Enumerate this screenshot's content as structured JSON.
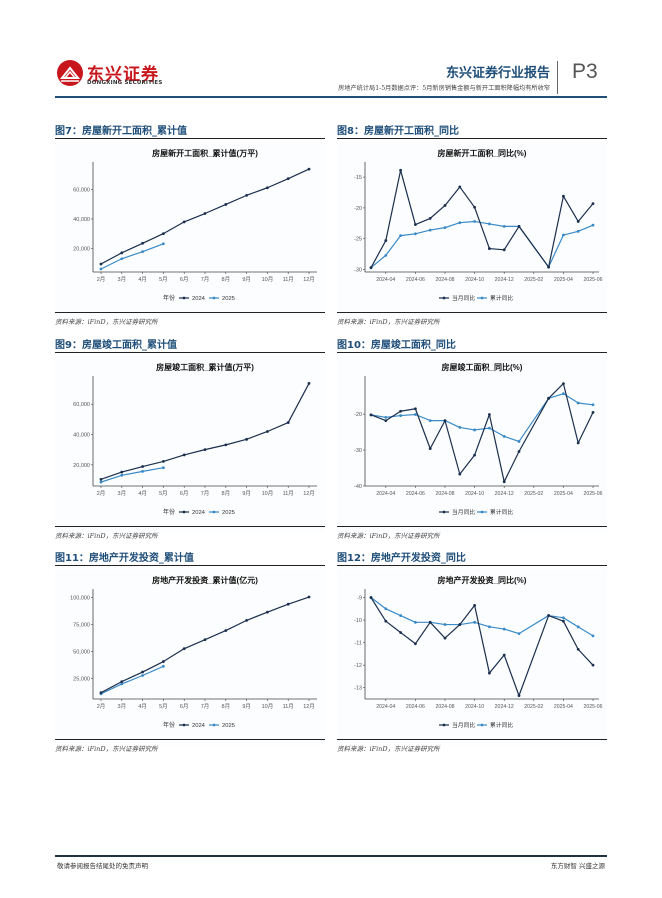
{
  "header": {
    "logo_cn": "东兴证券",
    "logo_en": "DONGXING SECURITIES",
    "report_title": "东兴证券行业报告",
    "subtitle": "房地产统计局1-5月数据点评：5月新房销售金额与新开工面积降幅均有所收窄",
    "page": "P3"
  },
  "colors": {
    "dark_series": "#1b2f4e",
    "light_series": "#3a8ac7",
    "title_blue": "#1f4e79"
  },
  "figures": [
    {
      "label": "图7：房屋新开工面积_累计值",
      "source": "资料来源：iFinD，东兴证券研究所"
    },
    {
      "label": "图8：房屋新开工面积_同比",
      "source": "资料来源：iFinD，东兴证券研究所"
    },
    {
      "label": "图9：房屋竣工面积_累计值",
      "source": "资料来源：iFinD，东兴证券研究所"
    },
    {
      "label": "图10：房屋竣工面积_同比",
      "source": "资料来源：iFinD，东兴证券研究所"
    },
    {
      "label": "图11：房地产开发投资_累计值",
      "source": "资料来源：iFinD，东兴证券研究所"
    },
    {
      "label": "图12：房地产开发投资_同比",
      "source": "资料来源：iFinD，东兴证券研究所"
    }
  ],
  "chart_data": [
    {
      "type": "line",
      "title": "房屋新开工面积_累计值(万平)",
      "categories": [
        "2月",
        "3月",
        "4月",
        "5月",
        "6月",
        "7月",
        "8月",
        "9月",
        "10月",
        "11月",
        "12月"
      ],
      "legend_title": "年份",
      "legend_position": "bottom",
      "ylim": [
        4000,
        76000
      ],
      "yticks": [
        20000,
        40000,
        60000
      ],
      "ytick_labels": [
        "20,000",
        "40,000",
        "60,000"
      ],
      "series": [
        {
          "name": "2024",
          "values": [
            9429,
            17026,
            23510,
            30090,
            38023,
            43731,
            49876,
            56051,
            61227,
            67407,
            73893
          ]
        },
        {
          "name": "2025",
          "values": [
            6035,
            12996,
            17836,
            23184
          ]
        }
      ]
    },
    {
      "type": "line",
      "title": "房屋新开工面积_同比(%)",
      "x": [
        "2024-03",
        "2024-04",
        "2024-05",
        "2024-06",
        "2024-07",
        "2024-08",
        "2024-09",
        "2024-10",
        "2024-11",
        "2024-12",
        "2025-01",
        "2025-03",
        "2025-04",
        "2025-05",
        "2025-06"
      ],
      "xticks": [
        "2024-04",
        "2024-06",
        "2024-08",
        "2024-10",
        "2024-12",
        "2025-02",
        "2025-04",
        "2025-06"
      ],
      "legend_position": "bottom",
      "ylim": [
        -30.4,
        -13.2
      ],
      "yticks": [
        -30,
        -25,
        -20,
        -15
      ],
      "series": [
        {
          "name": "当月同比",
          "values": [
            -29.7,
            -25.3,
            -13.9,
            -22.7,
            -21.7,
            -19.6,
            -16.6,
            -19.9,
            -26.6,
            -26.8,
            -23.0,
            -29.6,
            -18.1,
            -22.2,
            -19.3
          ]
        },
        {
          "name": "累计同比",
          "values": [
            -29.7,
            -27.7,
            -24.5,
            -24.2,
            -23.6,
            -23.2,
            -22.4,
            -22.2,
            -22.6,
            -23.0,
            -23.0,
            -29.6,
            -24.4,
            -23.8,
            -22.8
          ]
        }
      ]
    },
    {
      "type": "line",
      "title": "房屋竣工面积_累计值(万平)",
      "categories": [
        "2月",
        "3月",
        "4月",
        "5月",
        "6月",
        "7月",
        "8月",
        "9月",
        "10月",
        "11月",
        "12月"
      ],
      "legend_title": "年份",
      "legend_position": "bottom",
      "ylim": [
        6000,
        76000
      ],
      "yticks": [
        20000,
        40000,
        60000
      ],
      "ytick_labels": [
        "20,000",
        "40,000",
        "60,000"
      ],
      "series": [
        {
          "name": "2024",
          "values": [
            10395,
            15196,
            18840,
            22245,
            26519,
            30017,
            33163,
            36816,
            41995,
            47890,
            73743
          ]
        },
        {
          "name": "2025",
          "values": [
            8557,
            13060,
            15648,
            18086
          ]
        }
      ]
    },
    {
      "type": "line",
      "title": "房屋竣工面积_同比(%)",
      "x": [
        "2024-03",
        "2024-04",
        "2024-05",
        "2024-06",
        "2024-07",
        "2024-08",
        "2024-09",
        "2024-10",
        "2024-11",
        "2024-12",
        "2025-01",
        "2025-03",
        "2025-04",
        "2025-05",
        "2025-06"
      ],
      "xticks": [
        "2024-04",
        "2024-06",
        "2024-08",
        "2024-10",
        "2024-12",
        "2025-02",
        "2025-04",
        "2025-06"
      ],
      "legend_position": "bottom",
      "ylim": [
        -40,
        -10.5
      ],
      "yticks": [
        -40,
        -30,
        -20
      ],
      "series": [
        {
          "name": "当月同比",
          "values": [
            -20.2,
            -21.8,
            -19.2,
            -18.5,
            -29.6,
            -21.8,
            -36.7,
            -31.4,
            -20.1,
            -38.8,
            -30.4,
            -15.6,
            -11.5,
            -28.0,
            -19.5
          ]
        },
        {
          "name": "累计同比",
          "values": [
            -20.2,
            -20.9,
            -20.4,
            -20.1,
            -21.8,
            -21.8,
            -23.7,
            -24.4,
            -23.9,
            -26.2,
            -27.6,
            -15.6,
            -14.3,
            -16.9,
            -17.4
          ]
        }
      ]
    },
    {
      "type": "line",
      "title": "房地产开发投资_累计值(亿元)",
      "categories": [
        "2月",
        "3月",
        "4月",
        "5月",
        "6月",
        "7月",
        "8月",
        "9月",
        "10月",
        "11月",
        "12月"
      ],
      "legend_title": "年份",
      "legend_position": "bottom",
      "ylim": [
        6000,
        104000
      ],
      "yticks": [
        25000,
        50000,
        75000,
        100000
      ],
      "ytick_labels": [
        "25,000",
        "50,000",
        "75,000",
        "100,000"
      ],
      "series": [
        {
          "name": "2024",
          "values": [
            11842,
            22082,
            30928,
            40632,
            52529,
            60877,
            69284,
            78681,
            86309,
            93655,
            100280
          ]
        },
        {
          "name": "2025",
          "values": [
            10720,
            19904,
            27730,
            36234
          ]
        }
      ]
    },
    {
      "type": "line",
      "title": "房地产开发投资_同比(%)",
      "x": [
        "2024-03",
        "2024-04",
        "2024-05",
        "2024-06",
        "2024-07",
        "2024-08",
        "2024-09",
        "2024-10",
        "2024-11",
        "2024-12",
        "2025-01",
        "2025-03",
        "2025-04",
        "2025-05",
        "2025-06"
      ],
      "xticks": [
        "2024-04",
        "2024-06",
        "2024-08",
        "2024-10",
        "2024-12",
        "2025-02",
        "2025-04",
        "2025-06"
      ],
      "legend_position": "bottom",
      "ylim": [
        -13.5,
        -8.8
      ],
      "yticks": [
        -13,
        -12,
        -11,
        -10,
        -9
      ],
      "series": [
        {
          "name": "当月同比",
          "values": [
            -9.0,
            -10.05,
            -10.55,
            -11.05,
            -10.1,
            -10.8,
            -10.2,
            -9.35,
            -12.35,
            -11.55,
            -13.35,
            -9.8,
            -10.05,
            -11.3,
            -12.0
          ]
        },
        {
          "name": "累计同比",
          "values": [
            -9.0,
            -9.5,
            -9.8,
            -10.1,
            -10.1,
            -10.2,
            -10.2,
            -10.1,
            -10.3,
            -10.4,
            -10.6,
            -9.8,
            -9.9,
            -10.3,
            -10.7
          ]
        }
      ]
    }
  ],
  "footer": {
    "left": "敬请参阅报告结尾处的免责声明",
    "right": "东方财智 兴盛之源"
  }
}
